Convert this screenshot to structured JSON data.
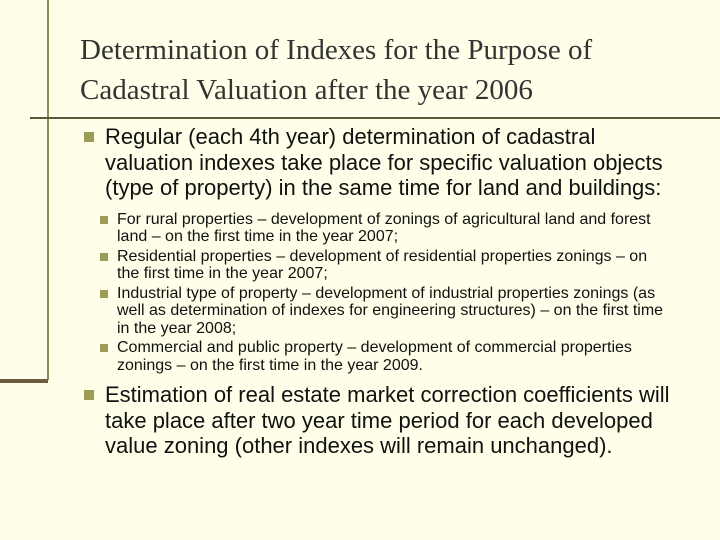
{
  "title": "Determination of Indexes for the Purpose of Cadastral Valuation after the year 2006",
  "bullets": [
    {
      "text": "Regular (each 4th year) determination of cadastral valuation indexes take place for specific valuation objects (type of property) in the same time for land and buildings:",
      "sub_bullets": [
        "For rural properties – development of zonings of agricultural land and forest land – on the first time in the year 2007;",
        "Residential properties –  development of residential properties zonings – on the first time in the year 2007;",
        "Industrial type of property – development of industrial properties zonings (as well as determination of indexes for engineering structures) – on the first time in the year 2008;",
        "Commercial and public property – development of commercial properties zonings – on the first time in the year 2009."
      ]
    },
    {
      "text": "Estimation of real estate market correction coefficients will take place after two year time period for each developed value zoning (other indexes will remain unchanged).",
      "sub_bullets": []
    }
  ]
}
